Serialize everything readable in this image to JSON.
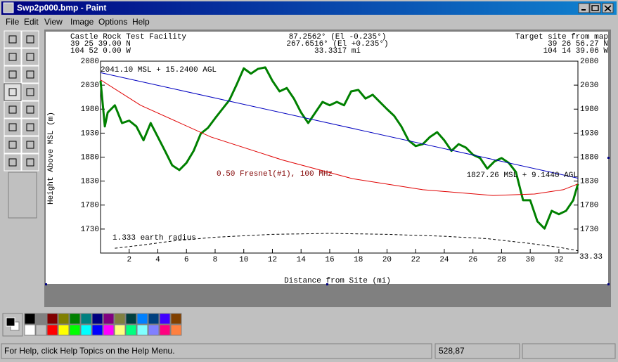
{
  "window": {
    "title": "Swp2p000.bmp - Paint"
  },
  "menu": [
    "File",
    "Edit",
    "View",
    "Image",
    "Options",
    "Help"
  ],
  "status": {
    "help": "For Help, click Help Topics on the Help Menu.",
    "coords": "528,87"
  },
  "chart_data": {
    "type": "line",
    "header": {
      "left": [
        "Castle Rock Test Facility",
        "39 25 39.00 N",
        "104 52 0.00 W"
      ],
      "center": [
        "87.2562° (El -0.235°)",
        "267.6516° (El +0.235°)",
        "33.3317 mi"
      ],
      "right": [
        "Target site from map",
        "39 26 56.27 N",
        "104 14 39.06 W"
      ]
    },
    "annotations": [
      "2041.10 MSL + 15.2400 AGL",
      "1827.26 MSL + 9.1440 AGL",
      "0.50 Fresnel(#1), 100 MHz",
      "1.333 earth radius"
    ],
    "xlabel": "Distance from Site (mi)",
    "ylabel": "Height Above MSL (m)",
    "xlim": [
      0,
      33.33
    ],
    "ylim": [
      1680,
      2080
    ],
    "xticks": [
      2,
      4,
      6,
      8,
      10,
      12,
      14,
      16,
      18,
      20,
      22,
      24,
      26,
      28,
      30,
      32
    ],
    "yticks": [
      2080,
      2030,
      1980,
      1930,
      1880,
      1830,
      1780,
      1730
    ],
    "series": [
      {
        "color": "#008000",
        "width": 3,
        "x": [
          0,
          0.3,
          0.5,
          1,
          1.5,
          2,
          2.5,
          3,
          3.5,
          4,
          4.5,
          5,
          5.5,
          6,
          6.5,
          7,
          7.5,
          8,
          8.5,
          9,
          9.5,
          10,
          10.5,
          11,
          11.5,
          12,
          12.5,
          13,
          13.5,
          14,
          14.5,
          15,
          15.5,
          16,
          16.5,
          17,
          17.5,
          18,
          18.5,
          19,
          19.5,
          20,
          20.5,
          21,
          21.5,
          22,
          22.5,
          23,
          23.5,
          24,
          24.5,
          25,
          25.5,
          26,
          26.5,
          27,
          27.5,
          28,
          28.5,
          29,
          29.5,
          30,
          30.5,
          31,
          31.5,
          32,
          32.5,
          33,
          33.33
        ],
        "values": [
          2039,
          1944,
          1973,
          1988,
          1951,
          1956,
          1944,
          1915,
          1951,
          1922,
          1893,
          1863,
          1853,
          1868,
          1893,
          1929,
          1941,
          1961,
          1980,
          1999,
          2031,
          2065,
          2054,
          2064,
          2067,
          2039,
          2017,
          2024,
          2002,
          1973,
          1951,
          1973,
          1995,
          1988,
          1995,
          1988,
          2017,
          2020,
          2002,
          2010,
          1995,
          1980,
          1966,
          1944,
          1915,
          1903,
          1907,
          1922,
          1932,
          1915,
          1893,
          1907,
          1900,
          1885,
          1878,
          1856,
          1871,
          1878,
          1868,
          1849,
          1790,
          1790,
          1746,
          1731,
          1768,
          1761,
          1768,
          1790,
          1824
        ]
      },
      {
        "color": "#0000c0",
        "width": 1,
        "x": [
          0,
          33.33
        ],
        "values": [
          2056,
          1836
        ]
      },
      {
        "color": "#e00000",
        "width": 1,
        "x": [
          0,
          2.8,
          7.7,
          12.7,
          17.6,
          22.5,
          27.4,
          30.3,
          32.3,
          33.33
        ],
        "values": [
          2041,
          1988,
          1922,
          1874,
          1835,
          1812,
          1800,
          1803,
          1812,
          1824
        ]
      },
      {
        "color": "#000000",
        "width": 1,
        "dash": true,
        "x": [
          1,
          3,
          5,
          8,
          12,
          16,
          20,
          24,
          27,
          30,
          32,
          33.33
        ],
        "values": [
          1690,
          1697,
          1705,
          1713,
          1719,
          1721,
          1719,
          1715,
          1710,
          1700,
          1692,
          1685
        ]
      }
    ]
  }
}
